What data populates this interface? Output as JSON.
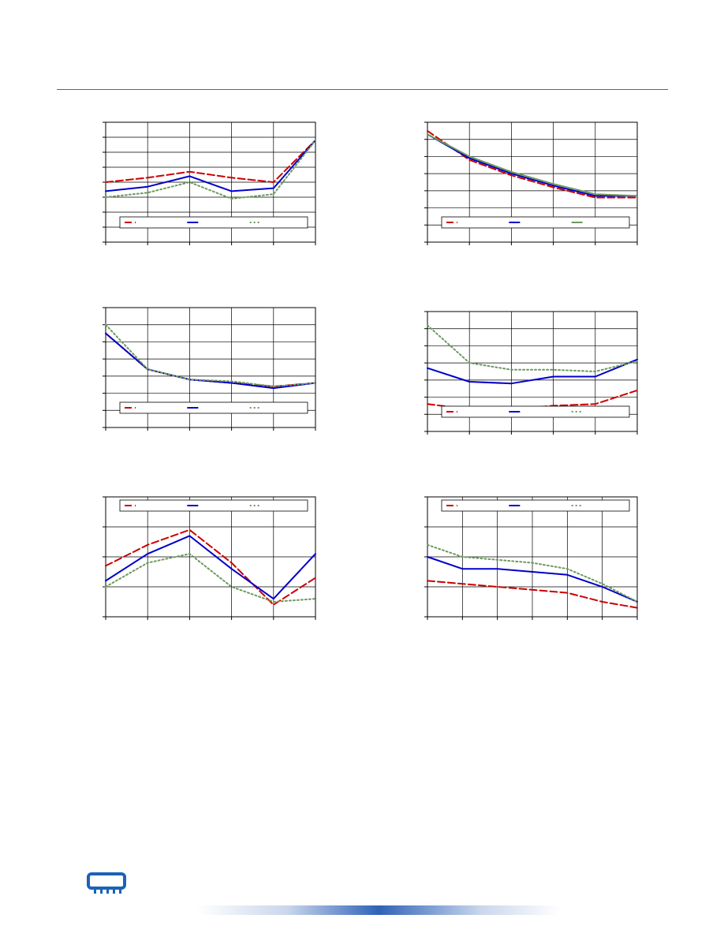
{
  "colors": {
    "rule": "#3b6aa8",
    "series_red": "#cc0000",
    "series_blue": "#0000cc",
    "series_green": "#6b9a5c",
    "grid": "#000000",
    "logo": "#1b63b5"
  },
  "footer": {
    "logo_icon": "memory-module-icon"
  },
  "chart_data": [
    {
      "type": "line",
      "x": [
        0,
        10,
        20,
        30,
        40,
        50
      ],
      "ylim": [
        0,
        8
      ],
      "legend_position": "bottom",
      "series": [
        {
          "style": "dashed",
          "color": "#cc0000",
          "values": [
            4.0,
            4.3,
            4.7,
            4.3,
            4.0,
            6.8
          ]
        },
        {
          "style": "solid",
          "color": "#0000cc",
          "values": [
            3.4,
            3.7,
            4.4,
            3.4,
            3.6,
            6.8
          ]
        },
        {
          "style": "dotted",
          "color": "#6b9a5c",
          "values": [
            3.0,
            3.3,
            4.0,
            2.9,
            3.2,
            6.8
          ]
        }
      ]
    },
    {
      "type": "line",
      "x": [
        0,
        10,
        20,
        30,
        40,
        50
      ],
      "ylim": [
        0,
        7
      ],
      "legend_position": "bottom",
      "series": [
        {
          "style": "dashed",
          "color": "#cc0000",
          "values": [
            6.5,
            4.8,
            3.9,
            3.2,
            2.6,
            2.6
          ]
        },
        {
          "style": "solid",
          "color": "#0000cc",
          "values": [
            6.3,
            4.9,
            4.0,
            3.3,
            2.7,
            2.7
          ]
        },
        {
          "style": "solid",
          "color": "#6b9a5c",
          "values": [
            6.3,
            5.0,
            4.1,
            3.4,
            2.8,
            2.7
          ]
        }
      ]
    },
    {
      "type": "line",
      "x": [
        0,
        10,
        20,
        30,
        40,
        50
      ],
      "ylim": [
        0,
        7
      ],
      "legend_position": "bottom",
      "series": [
        {
          "style": "dashed",
          "color": "#cc0000",
          "values": [
            5.5,
            3.4,
            2.8,
            2.6,
            2.4,
            2.6
          ]
        },
        {
          "style": "solid",
          "color": "#0000cc",
          "values": [
            5.5,
            3.4,
            2.8,
            2.6,
            2.3,
            2.6
          ]
        },
        {
          "style": "dotted",
          "color": "#6b9a5c",
          "values": [
            6.0,
            3.4,
            2.8,
            2.7,
            2.4,
            2.6
          ]
        }
      ]
    },
    {
      "type": "line",
      "x": [
        0,
        10,
        20,
        30,
        40,
        50
      ],
      "ylim": [
        0,
        7
      ],
      "legend_position": "bottom",
      "series": [
        {
          "style": "dashed",
          "color": "#cc0000",
          "values": [
            1.6,
            1.3,
            1.3,
            1.5,
            1.6,
            2.4
          ]
        },
        {
          "style": "solid",
          "color": "#0000cc",
          "values": [
            3.7,
            2.9,
            2.8,
            3.2,
            3.2,
            4.2
          ]
        },
        {
          "style": "dotted",
          "color": "#6b9a5c",
          "values": [
            6.2,
            4.0,
            3.6,
            3.6,
            3.5,
            4.1
          ]
        }
      ]
    },
    {
      "type": "line",
      "x": [
        0,
        10,
        20,
        30,
        40,
        50
      ],
      "ylim": [
        0,
        4
      ],
      "legend_position": "top",
      "series": [
        {
          "style": "dashed",
          "color": "#cc0000",
          "values": [
            1.7,
            2.4,
            2.9,
            1.8,
            0.4,
            1.3
          ]
        },
        {
          "style": "solid",
          "color": "#0000cc",
          "values": [
            1.2,
            2.1,
            2.7,
            1.6,
            0.6,
            2.1
          ]
        },
        {
          "style": "dotted",
          "color": "#6b9a5c",
          "values": [
            1.0,
            1.8,
            2.1,
            1.0,
            0.5,
            0.6
          ]
        }
      ]
    },
    {
      "type": "line",
      "x": [
        0,
        10,
        20,
        30,
        40,
        50,
        60
      ],
      "ylim": [
        0,
        4
      ],
      "legend_position": "top",
      "series": [
        {
          "style": "dashed",
          "color": "#cc0000",
          "values": [
            1.2,
            1.1,
            1.0,
            0.9,
            0.8,
            0.5,
            0.3
          ]
        },
        {
          "style": "solid",
          "color": "#0000cc",
          "values": [
            2.0,
            1.6,
            1.6,
            1.5,
            1.4,
            1.0,
            0.5
          ]
        },
        {
          "style": "dotted",
          "color": "#6b9a5c",
          "values": [
            2.4,
            2.0,
            1.9,
            1.8,
            1.6,
            1.1,
            0.5
          ]
        }
      ]
    }
  ]
}
